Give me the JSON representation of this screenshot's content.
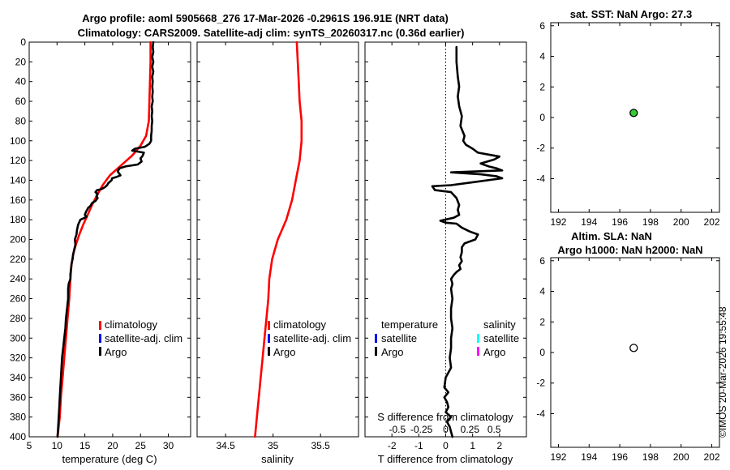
{
  "figure": {
    "title_line1": "Argo profile: aoml 5905668_276 17-Mar-2026 -0.2961S 196.91E (NRT data)",
    "title_line2": "Climatology: CARS2009. Satellite-adj clim: synTS_20260317.nc (0.36d earlier)",
    "timestamp": "©IMOS 20-Mar-2026 19:55:48"
  },
  "colors": {
    "climatology": "#ff0000",
    "satellite_adj": "#0000ff",
    "argo": "#000000",
    "sal_satellite": "#00ffff",
    "sal_argo": "#ff00ff",
    "sst_marker": "#33cc33",
    "sla_marker": "#ffffff"
  },
  "chart_data": [
    {
      "id": "temperature",
      "type": "line",
      "xlabel": "temperature (deg C)",
      "ylabel": "",
      "xlim": [
        5,
        34
      ],
      "ylim": [
        400,
        0
      ],
      "xticks": [
        "5",
        "10",
        "15",
        "20",
        "25",
        "30"
      ],
      "xtick_values": [
        5,
        10,
        15,
        20,
        25,
        30
      ],
      "yticks": [
        "0",
        "20",
        "40",
        "60",
        "80",
        "100",
        "120",
        "140",
        "160",
        "180",
        "200",
        "220",
        "240",
        "260",
        "280",
        "300",
        "320",
        "340",
        "360",
        "380",
        "400"
      ],
      "ytick_values": [
        0,
        20,
        40,
        60,
        80,
        100,
        120,
        140,
        160,
        180,
        200,
        220,
        240,
        260,
        280,
        300,
        320,
        340,
        360,
        380,
        400
      ],
      "legend": [
        "climatology",
        "satellite-adj. clim",
        "Argo"
      ],
      "series": [
        {
          "name": "climatology",
          "color": "#ff0000",
          "points": [
            [
              26.8,
              0
            ],
            [
              26.8,
              20
            ],
            [
              26.7,
              40
            ],
            [
              26.6,
              60
            ],
            [
              26.5,
              80
            ],
            [
              26.0,
              95
            ],
            [
              25.0,
              105
            ],
            [
              23.5,
              115
            ],
            [
              21.5,
              125
            ],
            [
              19.5,
              135
            ],
            [
              18.2,
              145
            ],
            [
              17.2,
              155
            ],
            [
              16.3,
              165
            ],
            [
              15.5,
              175
            ],
            [
              14.7,
              185
            ],
            [
              14.0,
              195
            ],
            [
              13.4,
              205
            ],
            [
              12.9,
              215
            ],
            [
              12.6,
              225
            ],
            [
              12.4,
              240
            ],
            [
              12.2,
              260
            ],
            [
              11.9,
              280
            ],
            [
              11.6,
              300
            ],
            [
              11.3,
              320
            ],
            [
              11.0,
              340
            ],
            [
              10.7,
              360
            ],
            [
              10.5,
              380
            ],
            [
              10.1,
              400
            ]
          ]
        },
        {
          "name": "Argo",
          "color": "#000000",
          "points": [
            [
              27.3,
              0
            ],
            [
              27.2,
              5
            ],
            [
              27.3,
              10
            ],
            [
              27.1,
              15
            ],
            [
              27.3,
              20
            ],
            [
              27.1,
              25
            ],
            [
              27.3,
              30
            ],
            [
              27.1,
              35
            ],
            [
              27.2,
              40
            ],
            [
              27.1,
              45
            ],
            [
              27.2,
              50
            ],
            [
              27.1,
              55
            ],
            [
              27.2,
              60
            ],
            [
              27.0,
              65
            ],
            [
              27.1,
              70
            ],
            [
              27.0,
              75
            ],
            [
              27.1,
              80
            ],
            [
              27.0,
              85
            ],
            [
              27.0,
              90
            ],
            [
              26.9,
              95
            ],
            [
              26.9,
              100
            ],
            [
              26.6,
              103
            ],
            [
              25.8,
              106
            ],
            [
              24.0,
              108
            ],
            [
              23.5,
              110
            ],
            [
              25.6,
              112
            ],
            [
              25.4,
              115
            ],
            [
              25.0,
              118
            ],
            [
              25.2,
              121
            ],
            [
              24.5,
              124
            ],
            [
              22.3,
              126
            ],
            [
              21.2,
              128
            ],
            [
              20.9,
              131
            ],
            [
              21.4,
              135
            ],
            [
              20.5,
              137
            ],
            [
              19.9,
              138
            ],
            [
              19.8,
              140
            ],
            [
              19.2,
              143
            ],
            [
              19.0,
              145
            ],
            [
              18.6,
              147
            ],
            [
              18.0,
              149
            ],
            [
              17.2,
              150
            ],
            [
              16.9,
              152
            ],
            [
              17.3,
              154
            ],
            [
              17.1,
              156
            ],
            [
              17.3,
              158
            ],
            [
              16.9,
              161
            ],
            [
              16.3,
              163
            ],
            [
              16.0,
              166
            ],
            [
              15.6,
              168
            ],
            [
              15.4,
              170
            ],
            [
              15.2,
              172
            ],
            [
              15.0,
              175
            ],
            [
              15.3,
              177
            ],
            [
              14.6,
              179
            ],
            [
              14.2,
              180
            ],
            [
              13.8,
              185
            ],
            [
              13.6,
              190
            ],
            [
              13.5,
              195
            ],
            [
              13.2,
              200
            ],
            [
              13.3,
              205
            ],
            [
              13.1,
              210
            ],
            [
              12.9,
              215
            ],
            [
              12.8,
              220
            ],
            [
              12.6,
              225
            ],
            [
              12.5,
              230
            ],
            [
              12.4,
              235
            ],
            [
              12.4,
              240
            ],
            [
              12.1,
              245
            ],
            [
              12.0,
              250
            ],
            [
              12.0,
              260
            ],
            [
              11.8,
              270
            ],
            [
              11.6,
              280
            ],
            [
              11.5,
              290
            ],
            [
              11.3,
              300
            ],
            [
              11.1,
              310
            ],
            [
              10.9,
              320
            ],
            [
              10.8,
              330
            ],
            [
              10.7,
              340
            ],
            [
              10.6,
              350
            ],
            [
              10.5,
              360
            ],
            [
              10.4,
              370
            ],
            [
              10.3,
              380
            ],
            [
              10.2,
              390
            ],
            [
              10.1,
              400
            ]
          ]
        }
      ]
    },
    {
      "id": "salinity",
      "type": "line",
      "xlabel": "salinity",
      "xlim": [
        34.2,
        35.9
      ],
      "ylim": [
        400,
        0
      ],
      "xticks": [
        "34.5",
        "35",
        "35.5"
      ],
      "xtick_values": [
        34.5,
        35,
        35.5
      ],
      "legend": [
        "climatology",
        "satellite-adj. clim",
        "Argo"
      ],
      "series": [
        {
          "name": "climatology",
          "color": "#ff0000",
          "points": [
            [
              35.25,
              0
            ],
            [
              35.26,
              20
            ],
            [
              35.27,
              40
            ],
            [
              35.28,
              60
            ],
            [
              35.3,
              80
            ],
            [
              35.3,
              100
            ],
            [
              35.28,
              120
            ],
            [
              35.24,
              140
            ],
            [
              35.2,
              160
            ],
            [
              35.14,
              180
            ],
            [
              35.05,
              200
            ],
            [
              34.99,
              220
            ],
            [
              34.96,
              240
            ],
            [
              34.95,
              260
            ],
            [
              34.93,
              280
            ],
            [
              34.91,
              300
            ],
            [
              34.89,
              320
            ],
            [
              34.87,
              340
            ],
            [
              34.85,
              360
            ],
            [
              34.83,
              380
            ],
            [
              34.81,
              400
            ]
          ]
        }
      ]
    },
    {
      "id": "difference",
      "type": "line",
      "xlabel": "T difference from climatology",
      "x2label": "S difference from climatology",
      "xlim": [
        -3,
        3
      ],
      "ylim": [
        400,
        0
      ],
      "xticks": [
        "-2",
        "-1",
        "0",
        "1",
        "2"
      ],
      "xtick_values": [
        -2,
        -1,
        0,
        1,
        2
      ],
      "x2ticks": [
        "-0.5",
        "-0.25",
        "0",
        "0.25",
        "0.5"
      ],
      "x2tick_values": [
        -1.8,
        -0.9,
        0,
        0.9,
        1.8
      ],
      "zero_line": "dotted",
      "legend_left_title": "temperature",
      "legend_left": [
        "satellite",
        "Argo"
      ],
      "legend_right_title": "salinity",
      "legend_right": [
        "satellite",
        "Argo"
      ],
      "series": [
        {
          "name": "T difference (Argo)",
          "color": "#000000",
          "points": [
            [
              0.4,
              5
            ],
            [
              0.4,
              20
            ],
            [
              0.45,
              35
            ],
            [
              0.5,
              45
            ],
            [
              0.45,
              55
            ],
            [
              0.5,
              65
            ],
            [
              0.6,
              75
            ],
            [
              0.55,
              85
            ],
            [
              0.7,
              95
            ],
            [
              0.65,
              100
            ],
            [
              0.75,
              104
            ],
            [
              1.0,
              108
            ],
            [
              1.2,
              112
            ],
            [
              1.6,
              114
            ],
            [
              2.0,
              116
            ],
            [
              1.8,
              119
            ],
            [
              1.3,
              123
            ],
            [
              1.6,
              126
            ],
            [
              1.9,
              128
            ],
            [
              2.1,
              130
            ],
            [
              0.2,
              132
            ],
            [
              1.3,
              134
            ],
            [
              1.9,
              136
            ],
            [
              2.1,
              138
            ],
            [
              1.0,
              142
            ],
            [
              0.2,
              145
            ],
            [
              -0.5,
              146
            ],
            [
              -0.4,
              150
            ],
            [
              0.2,
              152
            ],
            [
              0.4,
              158
            ],
            [
              0.5,
              165
            ],
            [
              0.45,
              170
            ],
            [
              0.5,
              175
            ],
            [
              0.3,
              178
            ],
            [
              -0.2,
              181
            ],
            [
              0.0,
              183
            ],
            [
              0.4,
              184
            ],
            [
              0.6,
              188
            ],
            [
              0.9,
              192
            ],
            [
              1.2,
              195
            ],
            [
              1.1,
              200
            ],
            [
              0.7,
              204
            ],
            [
              0.6,
              208
            ],
            [
              0.6,
              213
            ],
            [
              0.55,
              218
            ],
            [
              0.6,
              222
            ],
            [
              0.5,
              226
            ],
            [
              0.55,
              230
            ],
            [
              0.4,
              233
            ],
            [
              0.3,
              236
            ],
            [
              0.2,
              240
            ],
            [
              0.25,
              245
            ],
            [
              0.2,
              250
            ],
            [
              0.25,
              260
            ],
            [
              0.2,
              270
            ],
            [
              0.2,
              280
            ],
            [
              0.25,
              290
            ],
            [
              0.2,
              300
            ],
            [
              0.2,
              310
            ],
            [
              0.15,
              320
            ],
            [
              0.2,
              330
            ],
            [
              0.0,
              340
            ],
            [
              -0.05,
              350
            ],
            [
              0.1,
              355
            ],
            [
              -0.05,
              360
            ],
            [
              0.05,
              365
            ],
            [
              0.1,
              370
            ],
            [
              0.0,
              375
            ],
            [
              0.2,
              380
            ],
            [
              0.05,
              385
            ],
            [
              0.15,
              390
            ],
            [
              0.2,
              395
            ],
            [
              0.25,
              400
            ]
          ]
        }
      ]
    },
    {
      "id": "sst",
      "type": "scatter",
      "title": "sat. SST: NaN Argo: 27.3",
      "xlim": [
        191.5,
        202.5
      ],
      "ylim": [
        -6.2,
        6.2
      ],
      "xticks": [
        "192",
        "194",
        "196",
        "198",
        "200",
        "202"
      ],
      "xtick_values": [
        192,
        194,
        196,
        198,
        200,
        202
      ],
      "yticks": [
        "6",
        "4",
        "2",
        "0",
        "-2",
        "-4"
      ],
      "ytick_values": [
        6,
        4,
        2,
        0,
        -2,
        -4
      ],
      "points": [
        [
          196.91,
          0.3
        ]
      ]
    },
    {
      "id": "sla",
      "type": "scatter",
      "title_line1": "Altim. SLA: NaN",
      "title_line2": "Argo h1000: NaN h2000: NaN",
      "xlim": [
        191.5,
        202.5
      ],
      "ylim": [
        -6.2,
        6.2
      ],
      "xticks": [
        "192",
        "194",
        "196",
        "198",
        "200",
        "202"
      ],
      "xtick_values": [
        192,
        194,
        196,
        198,
        200,
        202
      ],
      "yticks": [
        "6",
        "4",
        "2",
        "0",
        "-2",
        "-4"
      ],
      "ytick_values": [
        6,
        4,
        2,
        0,
        -2,
        -4
      ],
      "points": [
        [
          196.91,
          0.3
        ]
      ]
    }
  ]
}
